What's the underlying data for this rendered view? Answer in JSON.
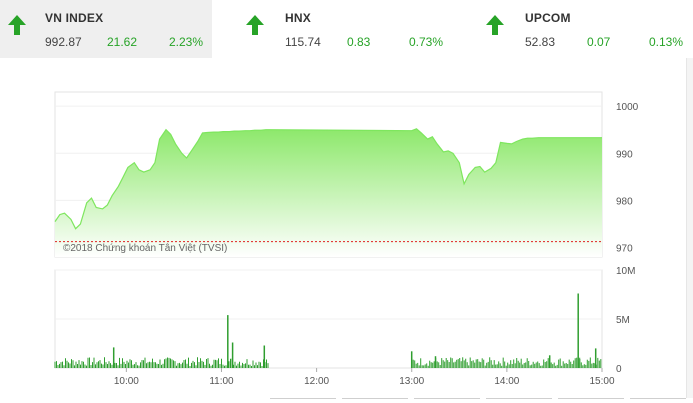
{
  "indices": [
    {
      "name": "VN INDEX",
      "value": "992.87",
      "change": "21.62",
      "percent": "2.23%"
    },
    {
      "name": "HNX",
      "value": "115.74",
      "change": "0.83",
      "percent": "0.73%"
    },
    {
      "name": "UPCOM",
      "value": "52.83",
      "change": "0.07",
      "percent": "0.13%"
    }
  ],
  "colors": {
    "up": "#27a327",
    "line": "#7ee65e",
    "fill_top": "#8de86b",
    "volume": "#2f9e2f",
    "ref_line": "#e02020",
    "grid": "#e3e3e3"
  },
  "chart_data": [
    {
      "type": "area",
      "title": "",
      "watermark": "©2018 Chứng khoán Tân Việt (TVSI)",
      "ylim": [
        968,
        1003
      ],
      "y_ticks": [
        "1000",
        "990",
        "980",
        "970"
      ],
      "x_ticks": [
        "10:00",
        "11:00",
        "12:00",
        "13:00",
        "14:00",
        "15:00"
      ],
      "reference_value": 971.25,
      "series": [
        {
          "x": [
            "09:15",
            "09:18",
            "09:21",
            "09:25",
            "09:28",
            "09:31",
            "09:35",
            "09:38",
            "09:41",
            "09:45",
            "09:48",
            "09:51",
            "09:55",
            "09:58",
            "10:01",
            "10:05",
            "10:08",
            "10:11",
            "10:15",
            "10:18",
            "10:21",
            "10:25",
            "10:28",
            "10:31",
            "10:35",
            "10:38",
            "10:41",
            "10:45",
            "10:48",
            "10:51",
            "10:55",
            "10:58",
            "11:01",
            "11:05",
            "11:08",
            "11:11",
            "11:15",
            "11:18",
            "11:21",
            "11:25",
            "11:28",
            "11:30",
            "13:00",
            "13:03",
            "13:06",
            "13:10",
            "13:13",
            "13:16",
            "13:20",
            "13:23",
            "13:26",
            "13:30",
            "13:33",
            "13:36",
            "13:40",
            "13:43",
            "13:46",
            "13:50",
            "13:53",
            "13:56",
            "14:00",
            "14:03",
            "14:06",
            "14:10",
            "14:13",
            "14:16",
            "14:20",
            "14:23",
            "14:26",
            "14:30",
            "14:33",
            "14:36",
            "14:40",
            "14:43",
            "14:46",
            "14:50",
            "14:53",
            "14:56",
            "15:00"
          ],
          "values": [
            975.5,
            977.0,
            977.3,
            976.0,
            974.0,
            975.0,
            979.5,
            980.5,
            978.5,
            978.2,
            979.0,
            981.0,
            983.0,
            985.0,
            987.0,
            988.0,
            986.5,
            986.0,
            986.5,
            988.0,
            993.0,
            995.0,
            994.0,
            992.0,
            990.0,
            989.0,
            990.5,
            992.5,
            994.3,
            994.4,
            994.5,
            994.5,
            994.6,
            994.6,
            994.7,
            994.7,
            994.8,
            994.8,
            994.9,
            994.9,
            995.0,
            995.0,
            994.8,
            995.2,
            994.3,
            993.0,
            993.5,
            992.0,
            990.3,
            990.5,
            990.0,
            988.0,
            983.5,
            985.5,
            987.0,
            987.2,
            986.0,
            986.8,
            988.0,
            992.3,
            992.1,
            992.0,
            992.5,
            993.0,
            993.2,
            993.2,
            993.3,
            993.3,
            993.3,
            993.3,
            993.3,
            993.3,
            993.3,
            993.3,
            993.3,
            993.3,
            993.3,
            993.3,
            993.3
          ]
        }
      ]
    },
    {
      "type": "bar",
      "title": "",
      "ylim": [
        0,
        10
      ],
      "y_ticks": [
        "10M",
        "5M",
        "0"
      ],
      "unit": "M",
      "spikes": [
        {
          "x": "09:52",
          "value": 2.1
        },
        {
          "x": "11:04",
          "value": 5.4
        },
        {
          "x": "11:07",
          "value": 2.6
        },
        {
          "x": "11:27",
          "value": 2.3
        },
        {
          "x": "13:00",
          "value": 1.7
        },
        {
          "x": "13:15",
          "value": 1.2
        },
        {
          "x": "14:27",
          "value": 1.3
        },
        {
          "x": "14:45",
          "value": 7.6
        },
        {
          "x": "14:56",
          "value": 2.0
        }
      ],
      "sessions": [
        [
          "09:15",
          "11:30"
        ],
        [
          "13:00",
          "14:46"
        ],
        [
          "14:46",
          "15:00"
        ]
      ]
    }
  ]
}
